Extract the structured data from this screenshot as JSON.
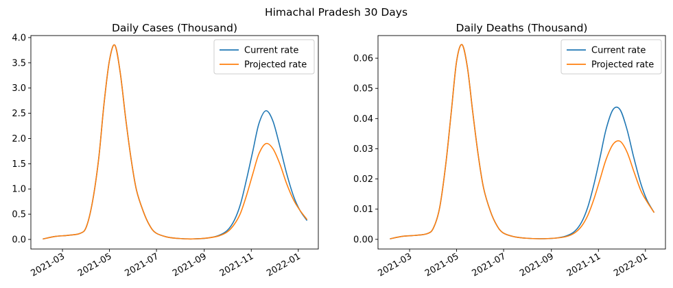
{
  "figure": {
    "suptitle": "Himachal Pradesh 30 Days"
  },
  "colors": {
    "current": "#1f77b4",
    "projected": "#ff7f0e",
    "axis": "#000000",
    "background": "#ffffff"
  },
  "chart_data": [
    {
      "type": "line",
      "title": "Daily Cases (Thousand)",
      "xlabel": "",
      "ylabel": "",
      "grid": false,
      "legend_position": "top-right",
      "x_ticks": [
        "2021-03",
        "2021-05",
        "2021-07",
        "2021-09",
        "2021-11",
        "2022-01"
      ],
      "y_ticks": [
        "0.0",
        "0.5",
        "1.0",
        "1.5",
        "2.0",
        "2.5",
        "3.0",
        "3.5",
        "4.0"
      ],
      "xlim": [
        "2021-01-19",
        "2022-01-27"
      ],
      "ylim": [
        -0.19,
        4.04
      ],
      "x": [
        "2021-02-04",
        "2021-02-20",
        "2021-03-08",
        "2021-03-24",
        "2021-04-01",
        "2021-04-09",
        "2021-04-17",
        "2021-04-24",
        "2021-05-01",
        "2021-05-08",
        "2021-05-15",
        "2021-05-22",
        "2021-05-29",
        "2021-06-05",
        "2021-06-14",
        "2021-06-22",
        "2021-06-30",
        "2021-07-14",
        "2021-07-29",
        "2021-08-17",
        "2021-09-06",
        "2021-09-20",
        "2021-10-01",
        "2021-10-10",
        "2021-10-18",
        "2021-10-26",
        "2021-11-03",
        "2021-11-11",
        "2021-11-20",
        "2021-11-29",
        "2021-12-08",
        "2021-12-17",
        "2021-12-26",
        "2022-01-03",
        "2022-01-12"
      ],
      "series": [
        {
          "name": "Current rate",
          "values": [
            0.01,
            0.06,
            0.08,
            0.12,
            0.25,
            0.75,
            1.6,
            2.7,
            3.55,
            3.85,
            3.3,
            2.4,
            1.6,
            0.98,
            0.55,
            0.28,
            0.13,
            0.05,
            0.02,
            0.01,
            0.03,
            0.08,
            0.18,
            0.38,
            0.7,
            1.2,
            1.75,
            2.3,
            2.55,
            2.35,
            1.85,
            1.3,
            0.85,
            0.58,
            0.38
          ]
        },
        {
          "name": "Projected rate",
          "values": [
            0.01,
            0.06,
            0.08,
            0.12,
            0.25,
            0.75,
            1.6,
            2.7,
            3.55,
            3.85,
            3.3,
            2.4,
            1.6,
            0.98,
            0.55,
            0.28,
            0.13,
            0.05,
            0.02,
            0.01,
            0.03,
            0.07,
            0.15,
            0.3,
            0.52,
            0.88,
            1.3,
            1.7,
            1.9,
            1.8,
            1.5,
            1.1,
            0.78,
            0.58,
            0.4
          ]
        }
      ]
    },
    {
      "type": "line",
      "title": "Daily Deaths (Thousand)",
      "xlabel": "",
      "ylabel": "",
      "grid": false,
      "legend_position": "top-right",
      "x_ticks": [
        "2021-03",
        "2021-05",
        "2021-07",
        "2021-09",
        "2021-11",
        "2022-01"
      ],
      "y_ticks": [
        "0.00",
        "0.01",
        "0.02",
        "0.03",
        "0.04",
        "0.05",
        "0.06"
      ],
      "xlim": [
        "2021-01-19",
        "2022-01-27"
      ],
      "ylim": [
        -0.0032,
        0.0675
      ],
      "x": [
        "2021-02-04",
        "2021-02-20",
        "2021-03-08",
        "2021-03-24",
        "2021-04-01",
        "2021-04-09",
        "2021-04-17",
        "2021-04-24",
        "2021-05-01",
        "2021-05-08",
        "2021-05-15",
        "2021-05-22",
        "2021-05-29",
        "2021-06-05",
        "2021-06-14",
        "2021-06-22",
        "2021-06-30",
        "2021-07-14",
        "2021-07-29",
        "2021-08-17",
        "2021-09-06",
        "2021-09-20",
        "2021-10-01",
        "2021-10-10",
        "2021-10-18",
        "2021-10-26",
        "2021-11-03",
        "2021-11-11",
        "2021-11-20",
        "2021-11-29",
        "2021-12-08",
        "2021-12-17",
        "2021-12-26",
        "2022-01-03",
        "2022-01-12"
      ],
      "series": [
        {
          "name": "Current rate",
          "values": [
            0.0002,
            0.001,
            0.0013,
            0.0019,
            0.0038,
            0.0105,
            0.025,
            0.042,
            0.059,
            0.0645,
            0.057,
            0.042,
            0.028,
            0.017,
            0.0092,
            0.0047,
            0.0022,
            0.0009,
            0.0004,
            0.0002,
            0.0004,
            0.0011,
            0.0026,
            0.0056,
            0.0105,
            0.018,
            0.027,
            0.0365,
            0.043,
            0.043,
            0.0365,
            0.027,
            0.0185,
            0.013,
            0.009
          ]
        },
        {
          "name": "Projected rate",
          "values": [
            0.0002,
            0.001,
            0.0013,
            0.0019,
            0.0038,
            0.0105,
            0.025,
            0.042,
            0.059,
            0.0645,
            0.057,
            0.042,
            0.028,
            0.017,
            0.0092,
            0.0047,
            0.0022,
            0.0009,
            0.0004,
            0.0002,
            0.0004,
            0.0009,
            0.0021,
            0.0043,
            0.0078,
            0.0132,
            0.0198,
            0.0265,
            0.0315,
            0.0325,
            0.029,
            0.0225,
            0.0162,
            0.0125,
            0.009
          ]
        }
      ]
    }
  ]
}
